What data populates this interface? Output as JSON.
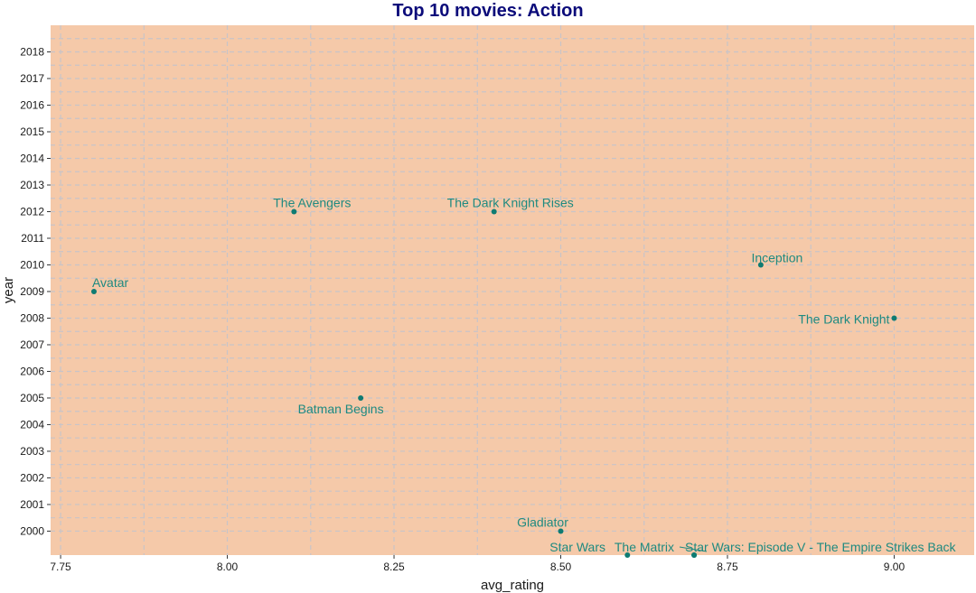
{
  "chart_data": {
    "type": "scatter",
    "title": "Top 10 movies: Action",
    "xlabel": "avg_rating",
    "ylabel": "year",
    "xlim": [
      7.735,
      9.12
    ],
    "ylim": [
      1999.1,
      2019.0
    ],
    "xticks": [
      7.75,
      8.0,
      8.25,
      8.5,
      8.75,
      9.0
    ],
    "xtick_labels": [
      "7.75",
      "8.00",
      "8.25",
      "8.50",
      "8.75",
      "9.00"
    ],
    "yticks": [
      2000,
      2001,
      2002,
      2003,
      2004,
      2005,
      2006,
      2007,
      2008,
      2009,
      2010,
      2011,
      2012,
      2013,
      2014,
      2015,
      2016,
      2017,
      2018
    ],
    "grid": true,
    "colors": {
      "panel": "#f5c9a9",
      "point": "#0f7b72",
      "label": "#1f8a80",
      "grid": "#c8c4c8",
      "title": "#0b0b7a"
    },
    "points": [
      {
        "label": "Avatar",
        "x": 7.8,
        "y": 2009
      },
      {
        "label": "The Avengers",
        "x": 8.1,
        "y": 2012
      },
      {
        "label": "The Dark Knight Rises",
        "x": 8.4,
        "y": 2012
      },
      {
        "label": "Batman Begins",
        "x": 8.2,
        "y": 2005
      },
      {
        "label": "Inception",
        "x": 8.8,
        "y": 2010
      },
      {
        "label": "The Dark Knight",
        "x": 9.0,
        "y": 2008
      },
      {
        "label": "Gladiator",
        "x": 8.5,
        "y": 2000
      },
      {
        "label": "Star Wars",
        "x": 8.6,
        "y": 1999.1
      },
      {
        "label": "The Matrix",
        "x": 8.7,
        "y": 1999.1
      },
      {
        "label": "Star Wars: Episode V - The Empire Strikes Back",
        "x": 8.7,
        "y": 1999.1
      }
    ]
  }
}
